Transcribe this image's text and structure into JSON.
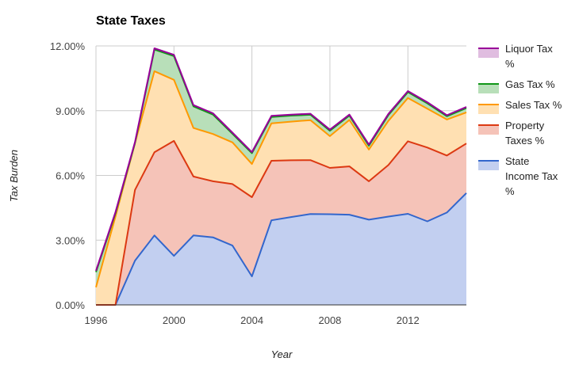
{
  "chart_data": {
    "type": "area",
    "stacked": true,
    "title": "State Taxes",
    "xlabel": "Year",
    "ylabel": "Tax Burden",
    "x": [
      1996,
      1997,
      1998,
      1999,
      2000,
      2001,
      2002,
      2003,
      2004,
      2005,
      2006,
      2007,
      2008,
      2009,
      2010,
      2011,
      2012,
      2013,
      2014,
      2015
    ],
    "xticks": [
      "1996",
      "2000",
      "2004",
      "2008",
      "2012"
    ],
    "xlim": [
      1996,
      2015
    ],
    "yticks": [
      "0.00%",
      "3.00%",
      "6.00%",
      "9.00%",
      "12.00%"
    ],
    "ylim": [
      0,
      12
    ],
    "grid": true,
    "legend_position": "right",
    "series": [
      {
        "name": "State Income Tax %",
        "color": "#3366cc",
        "fill": "#c2cff0",
        "values": [
          0.0,
          0.0,
          2.05,
          3.22,
          2.27,
          3.22,
          3.13,
          2.75,
          1.32,
          3.92,
          4.07,
          4.21,
          4.2,
          4.18,
          3.95,
          4.09,
          4.22,
          3.87,
          4.28,
          5.18
        ]
      },
      {
        "name": "Property Taxes %",
        "color": "#dc3912",
        "fill": "#f5c3b8",
        "values": [
          0.0,
          0.0,
          3.28,
          3.85,
          5.33,
          2.73,
          2.6,
          2.85,
          3.67,
          2.76,
          2.63,
          2.5,
          2.15,
          2.24,
          1.78,
          2.39,
          3.36,
          3.42,
          2.64,
          2.3
        ]
      },
      {
        "name": "Sales Tax %",
        "color": "#ff9900",
        "fill": "#ffe0b2",
        "values": [
          0.82,
          4.1,
          2.17,
          3.76,
          2.83,
          2.25,
          2.19,
          1.93,
          1.54,
          1.73,
          1.79,
          1.85,
          1.47,
          2.15,
          1.47,
          2.05,
          2.01,
          1.8,
          1.67,
          1.44
        ]
      },
      {
        "name": "Gas Tax %",
        "color": "#109618",
        "fill": "#b8dfb9",
        "values": [
          0.7,
          0.15,
          0.0,
          1.0,
          1.1,
          1.0,
          0.9,
          0.4,
          0.5,
          0.3,
          0.28,
          0.25,
          0.25,
          0.2,
          0.18,
          0.27,
          0.27,
          0.25,
          0.15,
          0.2
        ]
      },
      {
        "name": "Liquor Tax %",
        "color": "#990099",
        "fill": "#e0bde0",
        "values": [
          0.06,
          0.05,
          0.05,
          0.06,
          0.06,
          0.06,
          0.06,
          0.05,
          0.05,
          0.05,
          0.05,
          0.05,
          0.05,
          0.05,
          0.05,
          0.05,
          0.05,
          0.05,
          0.05,
          0.05
        ]
      }
    ],
    "legend_order": [
      "Liquor Tax %",
      "Gas Tax %",
      "Sales Tax %",
      "Property Taxes %",
      "State Income Tax %"
    ],
    "legend_lines": {
      "Liquor Tax %": [
        "Liquor Tax",
        "%"
      ],
      "Gas Tax %": [
        "Gas Tax %"
      ],
      "Sales Tax %": [
        "Sales Tax %"
      ],
      "Property Taxes %": [
        "Property",
        "Taxes %"
      ],
      "State Income Tax %": [
        "State",
        "Income Tax",
        "%"
      ]
    }
  }
}
